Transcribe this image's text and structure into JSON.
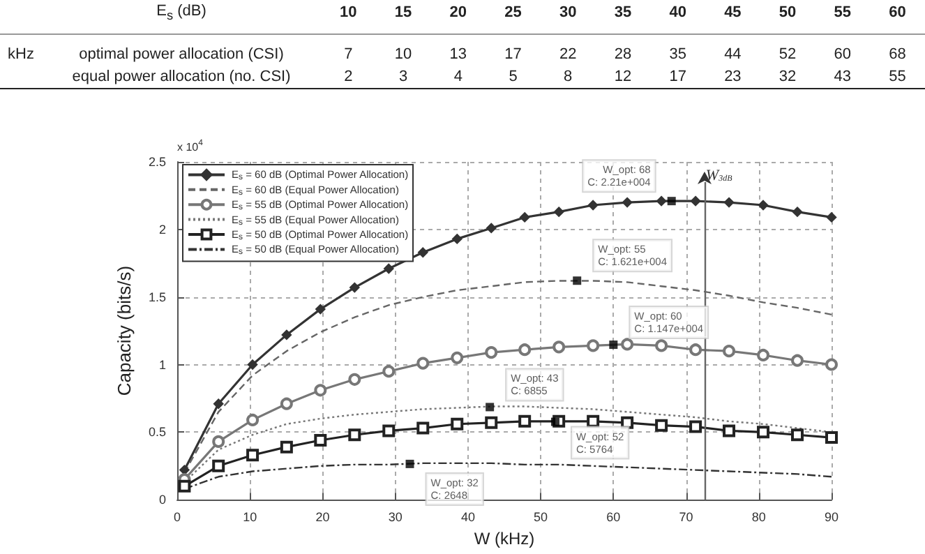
{
  "chart_data": {
    "type": "line",
    "xlabel": "W (kHz)",
    "ylabel": "Capacity (bits/s)",
    "x": [
      1,
      5.68,
      10.37,
      15.05,
      19.7,
      24.4,
      29.1,
      33.8,
      38.5,
      43.2,
      47.8,
      52.5,
      57.2,
      61.9,
      66.6,
      71.3,
      75.9,
      80.6,
      85.3,
      90
    ],
    "series": [
      {
        "name": "E$_{s}$ = 60 dB (Optimal Power Allocation)",
        "color": "#333333",
        "marker": "diamond",
        "line_style": "solid",
        "values": [
          0.22,
          0.71,
          1.0,
          1.22,
          1.41,
          1.57,
          1.71,
          1.83,
          1.93,
          2.01,
          2.09,
          2.13,
          2.18,
          2.2,
          2.21,
          2.21,
          2.2,
          2.18,
          2.13,
          2.09
        ]
      },
      {
        "name": "E$_{s}$ = 60 dB (Equal Power Allocation)",
        "color": "#666666",
        "marker": "none",
        "line_style": "dashed",
        "values": [
          0.2,
          0.65,
          0.92,
          1.1,
          1.24,
          1.35,
          1.44,
          1.5,
          1.55,
          1.58,
          1.61,
          1.62,
          1.62,
          1.61,
          1.58,
          1.55,
          1.51,
          1.46,
          1.42,
          1.37
        ]
      },
      {
        "name": "E$_{s}$ = 55 dB (Optimal Power Allocation)",
        "color": "#777777",
        "marker": "circle",
        "line_style": "solid",
        "values": [
          0.15,
          0.43,
          0.59,
          0.71,
          0.81,
          0.89,
          0.95,
          1.01,
          1.05,
          1.09,
          1.11,
          1.13,
          1.14,
          1.15,
          1.14,
          1.11,
          1.1,
          1.07,
          1.03,
          1.0
        ]
      },
      {
        "name": "E$_{s}$ = 55 dB (Equal Power Allocation)",
        "color": "#777777",
        "marker": "none",
        "line_style": "dotted",
        "values": [
          0.13,
          0.37,
          0.48,
          0.56,
          0.6,
          0.63,
          0.65,
          0.67,
          0.68,
          0.69,
          0.69,
          0.68,
          0.67,
          0.65,
          0.63,
          0.61,
          0.58,
          0.56,
          0.53,
          0.5
        ]
      },
      {
        "name": "E$_{s}$ = 50 dB (Optimal Power Allocation)",
        "color": "#222222",
        "marker": "square",
        "line_style": "solid",
        "values": [
          0.1,
          0.25,
          0.33,
          0.39,
          0.44,
          0.48,
          0.51,
          0.53,
          0.56,
          0.57,
          0.58,
          0.58,
          0.58,
          0.57,
          0.55,
          0.54,
          0.51,
          0.5,
          0.48,
          0.46
        ]
      },
      {
        "name": "E$_{s}$ = 50 dB (Equal Power Allocation)",
        "color": "#333333",
        "marker": "none",
        "line_style": "dashdot",
        "values": [
          0.08,
          0.17,
          0.21,
          0.23,
          0.25,
          0.26,
          0.26,
          0.27,
          0.27,
          0.27,
          0.26,
          0.26,
          0.25,
          0.24,
          0.23,
          0.22,
          0.21,
          0.2,
          0.19,
          0.17
        ]
      }
    ],
    "xlim": [
      0,
      90
    ],
    "xticks": [
      0,
      10,
      20,
      30,
      40,
      50,
      60,
      70,
      80,
      90
    ],
    "ylim": [
      0,
      2.5
    ],
    "yticks": [
      0,
      0.5,
      1,
      1.5,
      2,
      2.5
    ],
    "grid": true,
    "legend": "top left",
    "ref_lines": [
      {
        "axis": "x",
        "value": 72.6,
        "label": "W$_{3dB}$",
        "color": "#666666"
      }
    ],
    "annotations": [
      "\tE$_{s}$ (dB)\t10\t15\t20\t25\t30\t35\t40\t45\t50\t55\t60",
      "kHz\toptimal power allocation (CSI)\t7\t10\t13\t17\t22\t28\t35\t44\t52\t60\t68",
      "\tequal power allocation (no. CSI)\t2\t3\t4\t5\t8\t12\t17\t23\t32\t43\t55",
      "x 10$^{4}$",
      {
        "text": "W_opt: 68\nC: 2.21e+004",
        "x": 68,
        "y": 2.21
      },
      {
        "text": "W_opt: 55\nC: 1.621e+004",
        "x": 55,
        "y": 1.621
      },
      {
        "text": "W_opt: 60\nC: 1.147e+004",
        "x": 60,
        "y": 1.147
      },
      {
        "text": "W_opt: 43\nC: 6855",
        "x": 43,
        "y": 0.6855
      },
      {
        "text": "W_opt: 52\nC: 5764",
        "x": 52,
        "y": 0.5764
      },
      {
        "text": "W_opt: 32\nC: 2648",
        "x": 32,
        "y": 0.2648
      }
    ]
  }
}
